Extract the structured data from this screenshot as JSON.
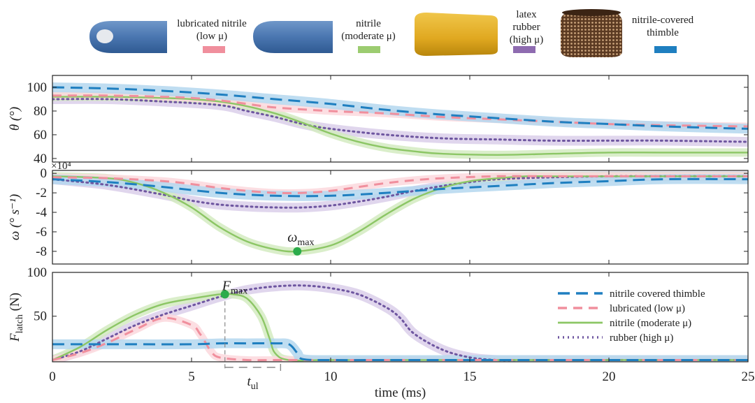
{
  "top_legend": {
    "items": [
      {
        "id": "lub",
        "line1": "lubricated nitrile",
        "line2": "(low μ)",
        "line3": "",
        "color": "#f08f9d",
        "icon": "blue-fingertip-icon"
      },
      {
        "id": "nit",
        "line1": "nitrile",
        "line2": "(moderate μ)",
        "line3": "",
        "color": "#9ccc70",
        "icon": "blue-fingertip-icon"
      },
      {
        "id": "rub",
        "line1": "latex",
        "line2": "rubber",
        "line3": "(high μ)",
        "color": "#8e6bb0",
        "icon": "yellow-fingertip-icon"
      },
      {
        "id": "thi",
        "line1": "nitrile-covered",
        "line2": "thimble",
        "line3": "",
        "color": "#1f7fc0",
        "icon": "thimble-icon"
      }
    ]
  },
  "colors": {
    "thimble": "#1f7fc0",
    "thimble_band": "#b4d7ee",
    "lub": "#f08f9d",
    "lub_band": "#fbd8dd",
    "nit": "#8cc665",
    "nit_band": "#d3ebc1",
    "rub": "#6e56a0",
    "rub_band": "#dacfea",
    "marker": "#2bab4b"
  },
  "chart_data": [
    {
      "type": "line",
      "id": "theta",
      "ylabel": "θ (°)",
      "ylim": [
        37,
        110
      ],
      "yticks": [
        40,
        60,
        80,
        100
      ],
      "xlim": [
        0,
        25
      ],
      "series": [
        {
          "id": "thi",
          "x": [
            0,
            2,
            4,
            6,
            8,
            10,
            12,
            14,
            16,
            18,
            20,
            22,
            25
          ],
          "y": [
            100,
            99,
            97,
            94,
            90,
            86,
            81,
            77,
            74,
            71,
            69,
            67,
            65
          ]
        },
        {
          "id": "lub",
          "x": [
            0,
            2,
            4,
            5,
            6,
            7,
            8,
            10,
            12,
            14,
            16,
            18,
            20,
            22,
            25
          ],
          "y": [
            93,
            93,
            92,
            91,
            89,
            86,
            83,
            80,
            78,
            75,
            73,
            71,
            69,
            68,
            67
          ]
        },
        {
          "id": "nit",
          "x": [
            0,
            2,
            4,
            5,
            6,
            7,
            8,
            9,
            10,
            11,
            12,
            13,
            14,
            16,
            18,
            20,
            22,
            25
          ],
          "y": [
            92,
            92,
            91,
            90,
            88,
            84,
            78,
            70,
            61,
            54,
            49,
            46,
            44,
            43,
            44,
            45,
            45,
            45
          ]
        },
        {
          "id": "rub",
          "x": [
            0,
            2,
            4,
            6,
            7,
            8,
            9,
            10,
            12,
            14,
            16,
            18,
            20,
            22,
            25
          ],
          "y": [
            90,
            90,
            88,
            85,
            80,
            75,
            69,
            65,
            60,
            57,
            56,
            55,
            55,
            55,
            54
          ]
        }
      ]
    },
    {
      "type": "line",
      "id": "omega",
      "ylabel": "ω (° s⁻¹)",
      "ylim": [
        -9.3,
        0.3
      ],
      "yticks": [
        0,
        -2,
        -4,
        -6,
        -8
      ],
      "exponent": "×10⁴",
      "xlim": [
        0,
        25
      ],
      "annotation": {
        "label": "ω",
        "sub": "max",
        "x": 8.8,
        "y": -8
      },
      "series": [
        {
          "id": "thi",
          "x": [
            0,
            2,
            4,
            6,
            8,
            10,
            12,
            14,
            16,
            18,
            20,
            22,
            25
          ],
          "y": [
            -0.6,
            -0.9,
            -1.4,
            -2.0,
            -2.3,
            -2.3,
            -2.0,
            -1.6,
            -1.3,
            -1.0,
            -0.8,
            -0.6,
            -0.6
          ]
        },
        {
          "id": "lub",
          "x": [
            0,
            2,
            4,
            5,
            6,
            7,
            8,
            9,
            10,
            11,
            12,
            13,
            14,
            16,
            18,
            20,
            22,
            25
          ],
          "y": [
            -0.4,
            -0.5,
            -0.8,
            -1.1,
            -1.5,
            -1.8,
            -2.0,
            -2.0,
            -1.8,
            -1.4,
            -1.0,
            -0.7,
            -0.5,
            -0.3,
            -0.3,
            -0.3,
            -0.3,
            -0.3
          ]
        },
        {
          "id": "nit",
          "x": [
            0,
            2,
            3,
            4,
            5,
            6,
            7,
            8,
            8.8,
            10,
            11,
            12,
            13,
            14,
            15,
            16,
            17,
            18,
            20,
            22,
            25
          ],
          "y": [
            -0.3,
            -0.5,
            -1.0,
            -2.0,
            -3.5,
            -5.5,
            -7.0,
            -7.8,
            -8.0,
            -7.4,
            -6.0,
            -4.2,
            -2.6,
            -1.5,
            -0.8,
            -0.5,
            -0.3,
            -0.3,
            -0.3,
            -0.3,
            -0.3
          ]
        },
        {
          "id": "rub",
          "x": [
            0,
            2,
            4,
            5,
            6,
            7,
            8,
            9,
            10,
            11,
            12,
            13,
            14,
            15,
            16,
            18,
            20,
            22,
            25
          ],
          "y": [
            -0.6,
            -1.2,
            -2.2,
            -2.8,
            -3.2,
            -3.4,
            -3.5,
            -3.5,
            -3.3,
            -2.9,
            -2.4,
            -1.8,
            -1.3,
            -0.9,
            -0.6,
            -0.4,
            -0.3,
            -0.3,
            -0.3
          ]
        }
      ]
    },
    {
      "type": "line",
      "id": "flatch",
      "ylabel": "F",
      "ylabel_sub": "latch",
      "ylabel_unit": "(N)",
      "ylim": [
        -2,
        100
      ],
      "yticks": [
        50,
        100
      ],
      "xlim": [
        0,
        25
      ],
      "xticks": [
        0,
        5,
        10,
        15,
        20,
        25
      ],
      "xlabel": "time (ms)",
      "annotation": {
        "label": "F",
        "sub": "max",
        "x": 6.2,
        "y": 75
      },
      "tul": {
        "label": "t",
        "sub": "ul",
        "x_start": 6.2,
        "x_end": 8.2
      },
      "legend": {
        "position": "right",
        "entries": [
          {
            "id": "thi",
            "label": "nitrile covered thimble"
          },
          {
            "id": "lub",
            "label": "lubricated (low μ)"
          },
          {
            "id": "nit",
            "label": "nitrile (moderate μ)"
          },
          {
            "id": "rub",
            "label": "rubber (high μ)"
          }
        ]
      },
      "series": [
        {
          "id": "thi",
          "x": [
            0,
            1,
            3,
            5,
            6,
            7,
            8,
            8.5,
            8.8,
            9,
            10,
            12,
            15,
            17,
            20,
            25
          ],
          "y": [
            18,
            18,
            18,
            18,
            19,
            19,
            19,
            18,
            8,
            1,
            0,
            0,
            0,
            0,
            0,
            0
          ]
        },
        {
          "id": "lub",
          "x": [
            0,
            1,
            2,
            3,
            4,
            5,
            5.3,
            5.5,
            5.7,
            6,
            7,
            8,
            10,
            12,
            15,
            17,
            20,
            25
          ],
          "y": [
            0,
            8,
            20,
            35,
            48,
            40,
            30,
            20,
            10,
            3,
            0,
            0,
            0,
            0,
            0,
            0,
            0,
            0
          ]
        },
        {
          "id": "nit",
          "x": [
            0,
            1,
            2,
            3,
            4,
            5,
            6,
            6.5,
            7,
            7.5,
            7.8,
            8,
            8.5,
            10,
            15,
            20,
            25
          ],
          "y": [
            0,
            15,
            35,
            52,
            64,
            70,
            75,
            75,
            70,
            50,
            25,
            8,
            0,
            0,
            0,
            0,
            0
          ]
        },
        {
          "id": "rub",
          "x": [
            0,
            1,
            2,
            3,
            4,
            5,
            6,
            7,
            8,
            9,
            10,
            11,
            12,
            12.5,
            13,
            14,
            15,
            16,
            17,
            20,
            25
          ],
          "y": [
            0,
            10,
            25,
            40,
            52,
            62,
            72,
            80,
            84,
            85,
            82,
            75,
            60,
            48,
            30,
            12,
            3,
            0,
            0,
            0,
            0
          ]
        }
      ]
    }
  ]
}
